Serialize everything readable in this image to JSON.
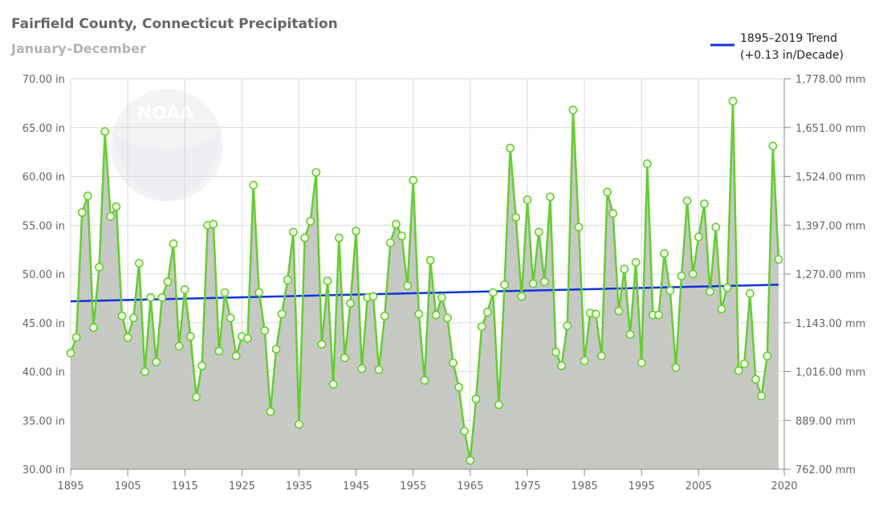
{
  "chart_data": {
    "type": "area",
    "title": "Fairfield County, Connecticut Precipitation",
    "subtitle": "January–December",
    "logo_text": "NOAA",
    "x": [
      1895,
      1896,
      1897,
      1898,
      1899,
      1900,
      1901,
      1902,
      1903,
      1904,
      1905,
      1906,
      1907,
      1908,
      1909,
      1910,
      1911,
      1912,
      1913,
      1914,
      1915,
      1916,
      1917,
      1918,
      1919,
      1920,
      1921,
      1922,
      1923,
      1924,
      1925,
      1926,
      1927,
      1928,
      1929,
      1930,
      1931,
      1932,
      1933,
      1934,
      1935,
      1936,
      1937,
      1938,
      1939,
      1940,
      1941,
      1942,
      1943,
      1944,
      1945,
      1946,
      1947,
      1948,
      1949,
      1950,
      1951,
      1952,
      1953,
      1954,
      1955,
      1956,
      1957,
      1958,
      1959,
      1960,
      1961,
      1962,
      1963,
      1964,
      1965,
      1966,
      1967,
      1968,
      1969,
      1970,
      1971,
      1972,
      1973,
      1974,
      1975,
      1976,
      1977,
      1978,
      1979,
      1980,
      1981,
      1982,
      1983,
      1984,
      1985,
      1986,
      1987,
      1988,
      1989,
      1990,
      1991,
      1992,
      1993,
      1994,
      1995,
      1996,
      1997,
      1998,
      1999,
      2000,
      2001,
      2002,
      2003,
      2004,
      2005,
      2006,
      2007,
      2008,
      2009,
      2010,
      2011,
      2012,
      2013,
      2014,
      2015,
      2016,
      2017,
      2018,
      2019
    ],
    "series": [
      {
        "name": "",
        "color": "#66cc33",
        "values": [
          41.9,
          43.5,
          56.3,
          58.0,
          44.5,
          50.7,
          64.6,
          55.9,
          56.9,
          45.7,
          43.5,
          45.5,
          51.1,
          40.0,
          47.6,
          41.0,
          47.6,
          49.2,
          53.1,
          42.6,
          48.4,
          43.6,
          37.4,
          40.6,
          55.0,
          55.1,
          42.1,
          48.1,
          45.5,
          41.6,
          43.6,
          43.4,
          59.1,
          48.1,
          44.2,
          35.9,
          42.3,
          45.9,
          49.4,
          54.3,
          34.6,
          53.7,
          55.4,
          60.4,
          42.8,
          49.3,
          38.7,
          53.7,
          41.4,
          47.0,
          54.4,
          40.3,
          47.6,
          47.7,
          40.2,
          45.7,
          53.2,
          55.1,
          53.9,
          48.8,
          59.6,
          45.9,
          39.1,
          51.4,
          45.8,
          47.6,
          45.5,
          40.9,
          38.4,
          33.9,
          30.9,
          37.2,
          44.6,
          46.1,
          48.1,
          36.6,
          48.9,
          62.9,
          55.8,
          47.7,
          57.6,
          49.0,
          54.3,
          49.2,
          57.9,
          42.0,
          40.6,
          44.7,
          66.8,
          54.8,
          41.1,
          46.0,
          45.9,
          41.6,
          58.4,
          56.2,
          46.2,
          50.5,
          43.8,
          51.2,
          40.9,
          61.3,
          45.8,
          45.8,
          52.1,
          48.3,
          40.4,
          49.8,
          57.5,
          50.0,
          53.8,
          57.2,
          48.2,
          54.8,
          46.4,
          48.6,
          67.7,
          40.1,
          40.8,
          48.0,
          39.2,
          37.5,
          41.6,
          63.1,
          51.5
        ]
      },
      {
        "name": "1895–2019 Trend",
        "name_line2": "(+0.13 in/Decade)",
        "color": "#1133dd",
        "start": [
          1895,
          47.2
        ],
        "end": [
          2019,
          48.9
        ]
      }
    ],
    "xlim": [
      1895,
      2020
    ],
    "ylim": [
      30,
      70
    ],
    "x_ticks": [
      1895,
      1905,
      1915,
      1925,
      1935,
      1945,
      1955,
      1965,
      1975,
      1985,
      1995,
      2005,
      2020
    ],
    "y_ticks_left": [
      "30.00 in",
      "35.00 in",
      "40.00 in",
      "45.00 in",
      "50.00 in",
      "55.00 in",
      "60.00 in",
      "65.00 in",
      "70.00 in"
    ],
    "y_ticks_right": [
      "762.00 mm",
      "889.00 mm",
      "1,016.00 mm",
      "1,143.00 mm",
      "1,270.00 mm",
      "1,397.00 mm",
      "1,524.00 mm",
      "1,651.00 mm",
      "1,778.00 mm"
    ],
    "grid": true,
    "legend_position": "top-right",
    "area_color": "#c6c9c3"
  }
}
